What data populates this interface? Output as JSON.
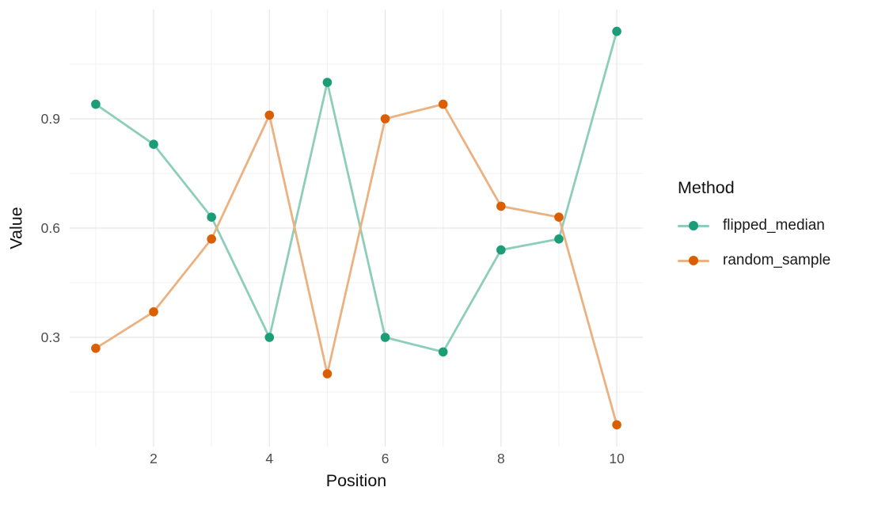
{
  "chart_data": {
    "type": "line",
    "xlabel": "Position",
    "ylabel": "Value",
    "x": [
      1,
      2,
      3,
      4,
      5,
      6,
      7,
      8,
      9,
      10
    ],
    "series": [
      {
        "name": "flipped_median",
        "values": [
          0.94,
          0.83,
          0.63,
          0.3,
          1.0,
          0.3,
          0.26,
          0.54,
          0.57,
          1.14
        ],
        "point_color": "#1B9E77",
        "line_color": "#8DCEBB"
      },
      {
        "name": "random_sample",
        "values": [
          0.27,
          0.37,
          0.57,
          0.91,
          0.2,
          0.9,
          0.94,
          0.66,
          0.63,
          0.06
        ],
        "point_color": "#D95F02",
        "line_color": "#ECB180"
      }
    ],
    "xlim": [
      0.55,
      10.45
    ],
    "ylim": [
      0,
      1.2
    ],
    "x_ticks": [
      2,
      4,
      6,
      8,
      10
    ],
    "x_minor_ticks": [
      1,
      3,
      5,
      7,
      9
    ],
    "y_ticks": [
      0.3,
      0.6,
      0.9
    ],
    "y_minor_ticks": [
      0.15,
      0.45,
      0.75,
      1.05
    ],
    "grid": {
      "on": true,
      "major_color": "#E6E6E6",
      "minor_color": "#F2F2F2"
    },
    "tick_label_color": "#4D4D4D",
    "legend": {
      "title": "Method",
      "position": "right"
    }
  }
}
